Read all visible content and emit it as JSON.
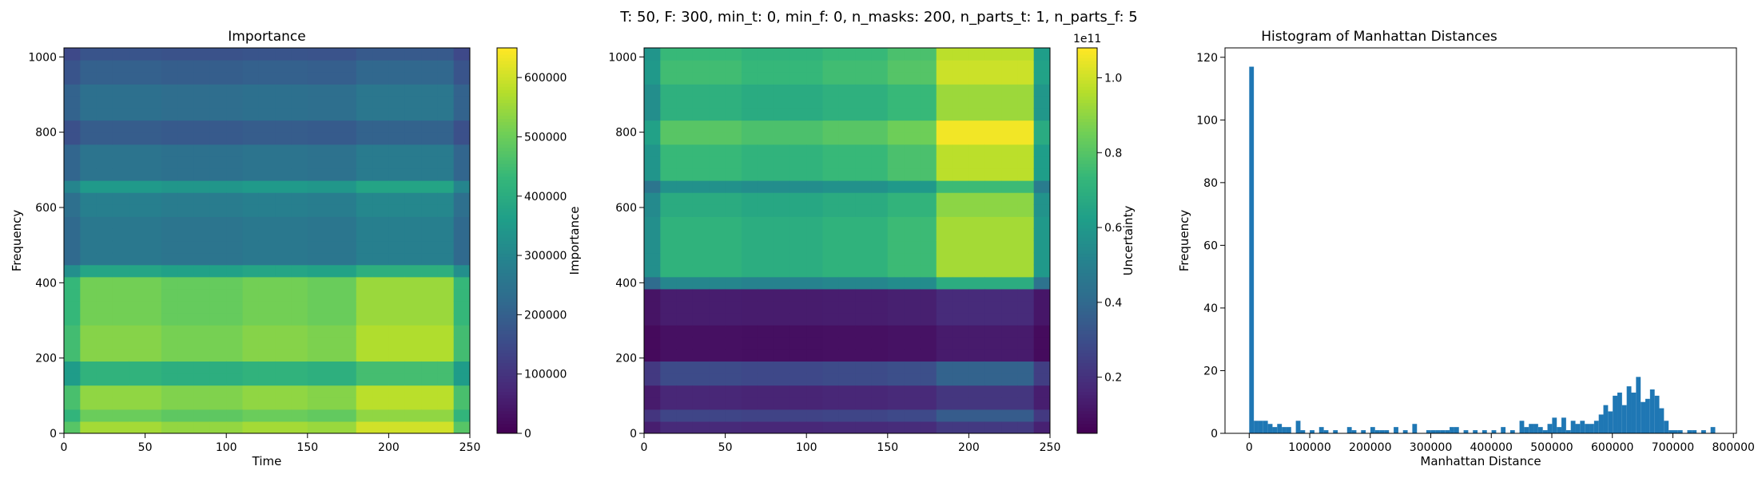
{
  "figure": {
    "suptitle": "T: 50, F: 300, min_t: 0, min_f: 0, n_masks: 200, n_parts_t: 1, n_parts_f: 5"
  },
  "colors": {
    "viridis": [
      "#440154",
      "#482878",
      "#3e4989",
      "#31688e",
      "#26828e",
      "#1f9e89",
      "#35b779",
      "#6ece58",
      "#b5de2b",
      "#fde725"
    ],
    "hist_bar": "#1f77b4"
  },
  "chart_data": [
    {
      "type": "heatmap",
      "title": "Importance",
      "xlabel": "Time",
      "ylabel": "Frequency",
      "xlim": [
        0,
        250
      ],
      "ylim": [
        0,
        1024
      ],
      "xticks": [
        0,
        50,
        100,
        150,
        200,
        250
      ],
      "yticks": [
        0,
        200,
        400,
        600,
        800,
        1000
      ],
      "colorbar": {
        "label": "Importance",
        "range": [
          0,
          650000
        ],
        "ticks": [
          0,
          100000,
          200000,
          300000,
          400000,
          500000,
          600000
        ],
        "tick_labels": [
          "0",
          "100000",
          "200000",
          "300000",
          "400000",
          "500000",
          "600000"
        ]
      },
      "freq_bands": [
        {
          "from": 0,
          "to": 20,
          "value": 560000
        },
        {
          "from": 20,
          "to": 60,
          "value": 500000
        },
        {
          "from": 60,
          "to": 140,
          "value": 540000
        },
        {
          "from": 140,
          "to": 190,
          "value": 420000
        },
        {
          "from": 190,
          "to": 300,
          "value": 530000
        },
        {
          "from": 300,
          "to": 400,
          "value": 510000
        },
        {
          "from": 400,
          "to": 460,
          "value": 380000
        },
        {
          "from": 460,
          "to": 560,
          "value": 260000
        },
        {
          "from": 560,
          "to": 640,
          "value": 280000
        },
        {
          "from": 640,
          "to": 680,
          "value": 350000
        },
        {
          "from": 680,
          "to": 760,
          "value": 250000
        },
        {
          "from": 760,
          "to": 840,
          "value": 190000
        },
        {
          "from": 840,
          "to": 920,
          "value": 240000
        },
        {
          "from": 920,
          "to": 980,
          "value": 200000
        },
        {
          "from": 980,
          "to": 1024,
          "value": 170000
        }
      ],
      "time_profile": [
        {
          "from": 0,
          "to": 10,
          "factor": 0.85
        },
        {
          "from": 10,
          "to": 60,
          "factor": 1.0
        },
        {
          "from": 60,
          "to": 110,
          "factor": 0.97
        },
        {
          "from": 110,
          "to": 150,
          "factor": 1.0
        },
        {
          "from": 150,
          "to": 180,
          "factor": 0.98
        },
        {
          "from": 180,
          "to": 240,
          "factor": 1.08
        },
        {
          "from": 240,
          "to": 250,
          "factor": 0.85
        }
      ]
    },
    {
      "type": "heatmap",
      "title": "",
      "xlabel": "",
      "ylabel": "",
      "xlim": [
        0,
        250
      ],
      "ylim": [
        0,
        1024
      ],
      "xticks": [
        0,
        50,
        100,
        150,
        200,
        250
      ],
      "yticks": [
        0,
        200,
        400,
        600,
        800,
        1000
      ],
      "colorbar": {
        "label": "Uncertainty",
        "offset_text": "1e11",
        "range": [
          0.05,
          1.08
        ],
        "ticks": [
          0.2,
          0.4,
          0.6,
          0.8,
          1.0
        ],
        "tick_labels": [
          "0.2",
          "0.4",
          "0.6",
          "0.8",
          "1.0"
        ]
      },
      "freq_bands": [
        {
          "from": 0,
          "to": 30,
          "value": 0.18
        },
        {
          "from": 30,
          "to": 60,
          "value": 0.28
        },
        {
          "from": 60,
          "to": 140,
          "value": 0.17
        },
        {
          "from": 140,
          "to": 190,
          "value": 0.3
        },
        {
          "from": 190,
          "to": 300,
          "value": 0.1
        },
        {
          "from": 300,
          "to": 380,
          "value": 0.14
        },
        {
          "from": 380,
          "to": 420,
          "value": 0.55
        },
        {
          "from": 420,
          "to": 560,
          "value": 0.75
        },
        {
          "from": 560,
          "to": 640,
          "value": 0.72
        },
        {
          "from": 640,
          "to": 680,
          "value": 0.6
        },
        {
          "from": 680,
          "to": 760,
          "value": 0.78
        },
        {
          "from": 760,
          "to": 840,
          "value": 0.85
        },
        {
          "from": 840,
          "to": 920,
          "value": 0.74
        },
        {
          "from": 920,
          "to": 980,
          "value": 0.8
        },
        {
          "from": 980,
          "to": 1024,
          "value": 0.78
        }
      ],
      "time_profile": [
        {
          "from": 0,
          "to": 10,
          "factor": 0.75
        },
        {
          "from": 10,
          "to": 60,
          "factor": 0.95
        },
        {
          "from": 60,
          "to": 110,
          "factor": 0.92
        },
        {
          "from": 110,
          "to": 150,
          "factor": 0.95
        },
        {
          "from": 150,
          "to": 180,
          "factor": 1.0
        },
        {
          "from": 180,
          "to": 240,
          "factor": 1.25
        },
        {
          "from": 240,
          "to": 250,
          "factor": 0.8
        }
      ]
    },
    {
      "type": "bar",
      "title": "Histogram of Manhattan Distances",
      "xlabel": "Manhattan Distance",
      "ylabel": "Frequency",
      "xlim": [
        -40000,
        805000
      ],
      "ylim": [
        0,
        123
      ],
      "xticks": [
        0,
        100000,
        200000,
        300000,
        400000,
        500000,
        600000,
        700000,
        800000
      ],
      "yticks": [
        0,
        20,
        40,
        60,
        80,
        100,
        120
      ],
      "bin_width": 7700,
      "bins": [
        {
          "x": 0,
          "count": 117
        },
        {
          "x": 7700,
          "count": 4
        },
        {
          "x": 15400,
          "count": 4
        },
        {
          "x": 23100,
          "count": 4
        },
        {
          "x": 30800,
          "count": 3
        },
        {
          "x": 38500,
          "count": 2
        },
        {
          "x": 46200,
          "count": 3
        },
        {
          "x": 53900,
          "count": 2
        },
        {
          "x": 61600,
          "count": 2
        },
        {
          "x": 69300,
          "count": 0
        },
        {
          "x": 77000,
          "count": 4
        },
        {
          "x": 84700,
          "count": 1
        },
        {
          "x": 92400,
          "count": 0
        },
        {
          "x": 100100,
          "count": 1
        },
        {
          "x": 107800,
          "count": 0
        },
        {
          "x": 115500,
          "count": 2
        },
        {
          "x": 123200,
          "count": 1
        },
        {
          "x": 138600,
          "count": 1
        },
        {
          "x": 161700,
          "count": 2
        },
        {
          "x": 169400,
          "count": 1
        },
        {
          "x": 184800,
          "count": 1
        },
        {
          "x": 200200,
          "count": 2
        },
        {
          "x": 207900,
          "count": 1
        },
        {
          "x": 215600,
          "count": 1
        },
        {
          "x": 223300,
          "count": 1
        },
        {
          "x": 238700,
          "count": 2
        },
        {
          "x": 254100,
          "count": 1
        },
        {
          "x": 269500,
          "count": 3
        },
        {
          "x": 292600,
          "count": 1
        },
        {
          "x": 300300,
          "count": 1
        },
        {
          "x": 308000,
          "count": 1
        },
        {
          "x": 315700,
          "count": 1
        },
        {
          "x": 323400,
          "count": 1
        },
        {
          "x": 331100,
          "count": 2
        },
        {
          "x": 338800,
          "count": 2
        },
        {
          "x": 354200,
          "count": 1
        },
        {
          "x": 369600,
          "count": 1
        },
        {
          "x": 385000,
          "count": 1
        },
        {
          "x": 400400,
          "count": 1
        },
        {
          "x": 415800,
          "count": 2
        },
        {
          "x": 431200,
          "count": 1
        },
        {
          "x": 446600,
          "count": 4
        },
        {
          "x": 454300,
          "count": 2
        },
        {
          "x": 462000,
          "count": 3
        },
        {
          "x": 469700,
          "count": 3
        },
        {
          "x": 477400,
          "count": 2
        },
        {
          "x": 485100,
          "count": 1
        },
        {
          "x": 492800,
          "count": 3
        },
        {
          "x": 500500,
          "count": 5
        },
        {
          "x": 508200,
          "count": 2
        },
        {
          "x": 515900,
          "count": 5
        },
        {
          "x": 523600,
          "count": 1
        },
        {
          "x": 531300,
          "count": 4
        },
        {
          "x": 539000,
          "count": 3
        },
        {
          "x": 546700,
          "count": 4
        },
        {
          "x": 554400,
          "count": 3
        },
        {
          "x": 562100,
          "count": 3
        },
        {
          "x": 569800,
          "count": 4
        },
        {
          "x": 577500,
          "count": 6
        },
        {
          "x": 585200,
          "count": 9
        },
        {
          "x": 592900,
          "count": 7
        },
        {
          "x": 600600,
          "count": 12
        },
        {
          "x": 608300,
          "count": 13
        },
        {
          "x": 616000,
          "count": 9
        },
        {
          "x": 623700,
          "count": 15
        },
        {
          "x": 631400,
          "count": 13
        },
        {
          "x": 639100,
          "count": 18
        },
        {
          "x": 646800,
          "count": 10
        },
        {
          "x": 654500,
          "count": 11
        },
        {
          "x": 662200,
          "count": 14
        },
        {
          "x": 669900,
          "count": 12
        },
        {
          "x": 677600,
          "count": 8
        },
        {
          "x": 685300,
          "count": 4
        },
        {
          "x": 693000,
          "count": 1
        },
        {
          "x": 700700,
          "count": 1
        },
        {
          "x": 708400,
          "count": 1
        },
        {
          "x": 723800,
          "count": 1
        },
        {
          "x": 731500,
          "count": 1
        },
        {
          "x": 746900,
          "count": 1
        },
        {
          "x": 762300,
          "count": 2
        }
      ]
    }
  ]
}
